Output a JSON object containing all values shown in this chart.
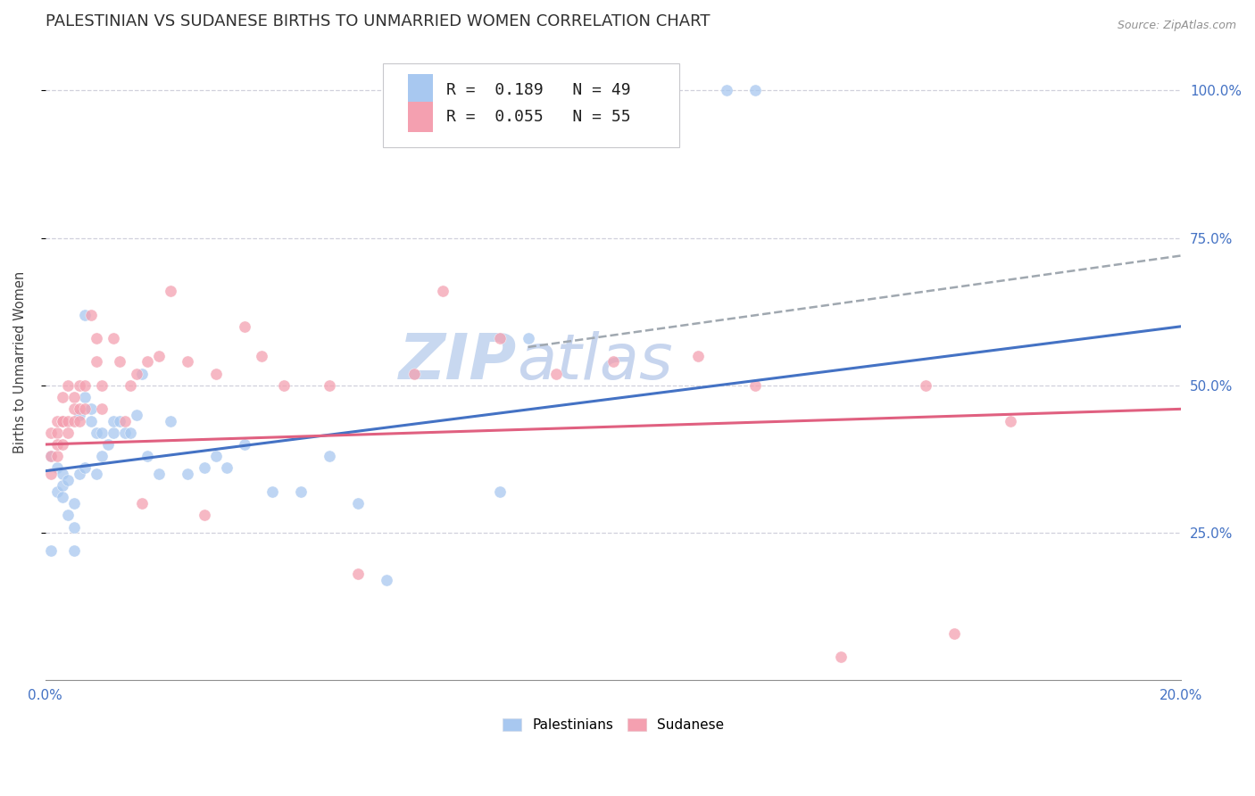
{
  "title": "PALESTINIAN VS SUDANESE BIRTHS TO UNMARRIED WOMEN CORRELATION CHART",
  "source": "Source: ZipAtlas.com",
  "ylabel": "Births to Unmarried Women",
  "xlim": [
    0.0,
    0.2
  ],
  "ylim": [
    0.0,
    1.08
  ],
  "palestinian_color": "#a8c8f0",
  "sudanese_color": "#f4a0b0",
  "trendline_pal_color": "#4472c4",
  "trendline_sud_color": "#e06080",
  "trendline_ext_color": "#a0a8b0",
  "background_color": "#ffffff",
  "grid_color": "#d0d0dc",
  "marker_size": 90,
  "marker_alpha": 0.75,
  "title_fontsize": 13,
  "axis_label_fontsize": 10.5,
  "tick_fontsize": 11,
  "legend_fontsize": 13,
  "watermark_text": "ZIP",
  "watermark_text2": "atlas",
  "watermark_color": "#c8d8f0",
  "watermark_fontsize": 52,
  "palestinians_x": [
    0.001,
    0.001,
    0.002,
    0.002,
    0.003,
    0.003,
    0.003,
    0.004,
    0.004,
    0.005,
    0.005,
    0.005,
    0.006,
    0.006,
    0.007,
    0.007,
    0.007,
    0.008,
    0.008,
    0.009,
    0.009,
    0.01,
    0.01,
    0.011,
    0.012,
    0.012,
    0.013,
    0.014,
    0.015,
    0.016,
    0.017,
    0.018,
    0.02,
    0.022,
    0.025,
    0.028,
    0.03,
    0.032,
    0.035,
    0.04,
    0.045,
    0.05,
    0.055,
    0.06,
    0.08,
    0.085,
    0.09,
    0.12,
    0.125
  ],
  "palestinians_y": [
    0.38,
    0.22,
    0.32,
    0.36,
    0.35,
    0.33,
    0.31,
    0.34,
    0.28,
    0.3,
    0.26,
    0.22,
    0.35,
    0.45,
    0.36,
    0.48,
    0.62,
    0.44,
    0.46,
    0.35,
    0.42,
    0.42,
    0.38,
    0.4,
    0.42,
    0.44,
    0.44,
    0.42,
    0.42,
    0.45,
    0.52,
    0.38,
    0.35,
    0.44,
    0.35,
    0.36,
    0.38,
    0.36,
    0.4,
    0.32,
    0.32,
    0.38,
    0.3,
    0.17,
    0.32,
    0.58,
    1.0,
    1.0,
    1.0
  ],
  "sudanese_x": [
    0.001,
    0.001,
    0.001,
    0.002,
    0.002,
    0.002,
    0.002,
    0.003,
    0.003,
    0.003,
    0.003,
    0.004,
    0.004,
    0.004,
    0.005,
    0.005,
    0.005,
    0.006,
    0.006,
    0.006,
    0.007,
    0.007,
    0.008,
    0.009,
    0.009,
    0.01,
    0.01,
    0.012,
    0.013,
    0.014,
    0.015,
    0.016,
    0.017,
    0.018,
    0.02,
    0.022,
    0.025,
    0.028,
    0.03,
    0.035,
    0.038,
    0.042,
    0.05,
    0.055,
    0.065,
    0.07,
    0.08,
    0.09,
    0.1,
    0.115,
    0.125,
    0.14,
    0.155,
    0.16,
    0.17
  ],
  "sudanese_y": [
    0.38,
    0.42,
    0.35,
    0.42,
    0.38,
    0.44,
    0.4,
    0.4,
    0.44,
    0.48,
    0.44,
    0.44,
    0.42,
    0.5,
    0.44,
    0.48,
    0.46,
    0.46,
    0.5,
    0.44,
    0.5,
    0.46,
    0.62,
    0.58,
    0.54,
    0.5,
    0.46,
    0.58,
    0.54,
    0.44,
    0.5,
    0.52,
    0.3,
    0.54,
    0.55,
    0.66,
    0.54,
    0.28,
    0.52,
    0.6,
    0.55,
    0.5,
    0.5,
    0.18,
    0.52,
    0.66,
    0.58,
    0.52,
    0.54,
    0.55,
    0.5,
    0.04,
    0.5,
    0.08,
    0.44
  ],
  "pal_trend": [
    0.0,
    0.2,
    0.355,
    0.6
  ],
  "sud_trend": [
    0.0,
    0.2,
    0.4,
    0.46
  ],
  "ext_trend": [
    0.085,
    0.2,
    0.565,
    0.72
  ]
}
